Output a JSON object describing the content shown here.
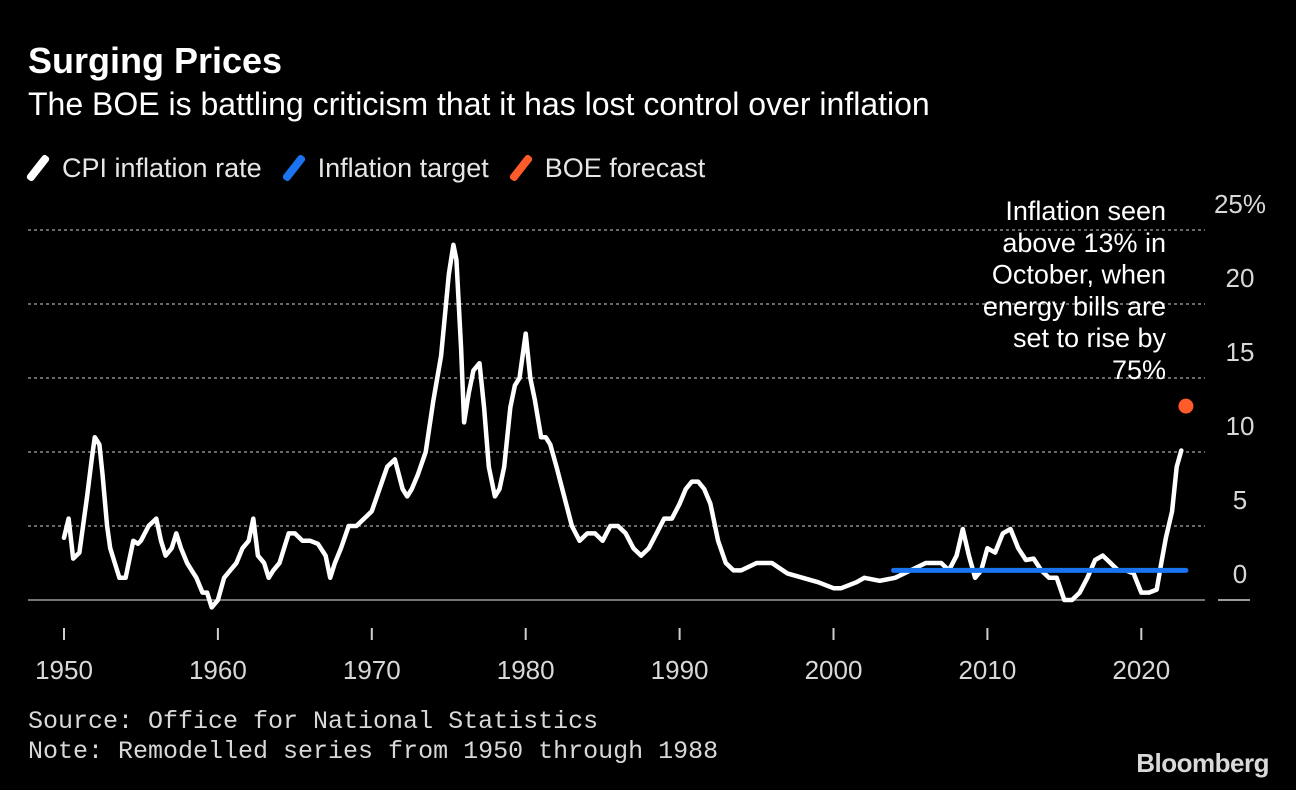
{
  "header": {
    "title": "Surging Prices",
    "subtitle": "The BOE is battling criticism that it has lost control over inflation"
  },
  "legend": {
    "items": [
      {
        "label": "CPI inflation rate",
        "color": "#ffffff"
      },
      {
        "label": "Inflation target",
        "color": "#1a73f0"
      },
      {
        "label": "BOE forecast",
        "color": "#ff5a2a"
      }
    ]
  },
  "footer": {
    "source": "Source: Office for National Statistics",
    "note": "Note: Remodelled series from 1950 through 1988",
    "brand": "Bloomberg"
  },
  "chart_data": {
    "type": "line",
    "title": "Surging Prices",
    "xlim": [
      1949,
      2026
    ],
    "ylim": [
      -2,
      25
    ],
    "x_ticks": [
      1950,
      1960,
      1970,
      1980,
      1990,
      2000,
      2010,
      2020
    ],
    "x_tick_labels": [
      "1950",
      "1960",
      "1970",
      "1980",
      "1990",
      "2000",
      "2010",
      "2020"
    ],
    "y_ticks": [
      0,
      5,
      10,
      15,
      20,
      25
    ],
    "y_tick_labels": [
      "0",
      "5",
      "10",
      "15",
      "20",
      "25%"
    ],
    "gridlines": [
      5,
      10,
      15,
      20,
      25
    ],
    "series": [
      {
        "name": "CPI inflation rate",
        "color": "#ffffff",
        "x": [
          1950.0,
          1950.3,
          1950.6,
          1951.0,
          1951.5,
          1951.8,
          1952.0,
          1952.3,
          1952.5,
          1952.8,
          1953.0,
          1953.3,
          1953.6,
          1954.0,
          1954.3,
          1954.5,
          1954.8,
          1955.0,
          1955.5,
          1956.0,
          1956.3,
          1956.6,
          1957.0,
          1957.3,
          1957.6,
          1958.0,
          1958.3,
          1958.6,
          1959.0,
          1959.3,
          1959.6,
          1960.0,
          1960.4,
          1960.8,
          1961.2,
          1961.6,
          1962.0,
          1962.3,
          1962.6,
          1963.0,
          1963.3,
          1963.6,
          1964.0,
          1964.3,
          1964.6,
          1965.0,
          1965.5,
          1966.0,
          1966.5,
          1967.0,
          1967.3,
          1967.6,
          1968.0,
          1968.5,
          1969.0,
          1969.5,
          1970.0,
          1970.5,
          1971.0,
          1971.5,
          1972.0,
          1972.3,
          1972.6,
          1973.0,
          1973.5,
          1974.0,
          1974.5,
          1975.0,
          1975.3,
          1975.5,
          1975.8,
          1976.0,
          1976.3,
          1976.6,
          1977.0,
          1977.3,
          1977.6,
          1978.0,
          1978.3,
          1978.6,
          1979.0,
          1979.3,
          1979.6,
          1980.0,
          1980.3,
          1980.6,
          1981.0,
          1981.3,
          1981.6,
          1982.0,
          1982.5,
          1983.0,
          1983.5,
          1984.0,
          1984.5,
          1985.0,
          1985.5,
          1986.0,
          1986.5,
          1987.0,
          1987.5,
          1988.0,
          1988.5,
          1989.0,
          1989.5,
          1990.0,
          1990.4,
          1990.8,
          1991.2,
          1991.6,
          1992.0,
          1992.5,
          1993.0,
          1993.5,
          1994.0,
          1995.0,
          1996.0,
          1997.0,
          1998.0,
          1999.0,
          2000.0,
          2000.5,
          2001.0,
          2001.5,
          2002.0,
          2003.0,
          2004.0,
          2005.0,
          2006.0,
          2007.0,
          2007.5,
          2008.0,
          2008.4,
          2008.8,
          2009.2,
          2009.6,
          2010.0,
          2010.5,
          2011.0,
          2011.5,
          2012.0,
          2012.5,
          2013.0,
          2013.5,
          2014.0,
          2014.5,
          2015.0,
          2015.5,
          2016.0,
          2016.5,
          2017.0,
          2017.5,
          2018.0,
          2018.5,
          2019.0,
          2019.5,
          2020.0,
          2020.5,
          2021.0,
          2021.3,
          2021.6,
          2022.0,
          2022.3,
          2022.6
        ],
        "y": [
          4.2,
          5.5,
          2.8,
          3.2,
          7.0,
          9.5,
          11.0,
          10.5,
          8.5,
          5.0,
          3.5,
          2.5,
          1.5,
          1.5,
          3.0,
          4.0,
          3.8,
          4.0,
          5.0,
          5.5,
          4.0,
          3.0,
          3.5,
          4.5,
          3.5,
          2.5,
          2.0,
          1.5,
          0.5,
          0.5,
          -0.5,
          0.0,
          1.5,
          2.0,
          2.5,
          3.5,
          4.0,
          5.5,
          3.0,
          2.5,
          1.5,
          2.0,
          2.5,
          3.5,
          4.5,
          4.5,
          4.0,
          4.0,
          3.8,
          3.0,
          1.5,
          2.5,
          3.5,
          5.0,
          5.0,
          5.5,
          6.0,
          7.5,
          9.0,
          9.5,
          7.5,
          7.0,
          7.5,
          8.5,
          10.0,
          13.5,
          16.5,
          22.0,
          24.0,
          23.0,
          17.0,
          12.0,
          14.0,
          15.5,
          16.0,
          13.0,
          9.0,
          7.0,
          7.5,
          9.0,
          13.0,
          14.5,
          15.0,
          18.0,
          15.0,
          13.5,
          11.0,
          11.0,
          10.5,
          9.0,
          7.0,
          5.0,
          4.0,
          4.5,
          4.5,
          4.0,
          5.0,
          5.0,
          4.5,
          3.5,
          3.0,
          3.5,
          4.5,
          5.5,
          5.5,
          6.5,
          7.5,
          8.0,
          8.0,
          7.5,
          6.5,
          4.0,
          2.5,
          2.0,
          2.0,
          2.5,
          2.5,
          1.8,
          1.5,
          1.2,
          0.8,
          0.8,
          1.0,
          1.2,
          1.5,
          1.3,
          1.5,
          2.0,
          2.5,
          2.5,
          2.0,
          3.0,
          4.8,
          3.0,
          1.5,
          2.0,
          3.5,
          3.2,
          4.5,
          4.8,
          3.5,
          2.7,
          2.8,
          2.0,
          1.5,
          1.5,
          0.0,
          0.0,
          0.5,
          1.5,
          2.7,
          3.0,
          2.5,
          2.0,
          2.0,
          1.8,
          0.5,
          0.5,
          0.7,
          2.5,
          4.2,
          6.0,
          9.0,
          10.1
        ],
        "last_point": {
          "x": 2022.6,
          "y": 10.1
        }
      },
      {
        "name": "Inflation target",
        "color": "#1a73f0",
        "x": [
          2003.9,
          2022.9
        ],
        "y": [
          2.0,
          2.0
        ]
      },
      {
        "name": "BOE forecast",
        "color": "#ff5a2a",
        "x": [
          2022.9
        ],
        "y": [
          13.1
        ]
      }
    ],
    "annotation": {
      "lines": [
        "Inflation seen",
        "above 13% in",
        "October, when",
        "energy bills are",
        "set to rise by",
        "75%"
      ]
    }
  }
}
